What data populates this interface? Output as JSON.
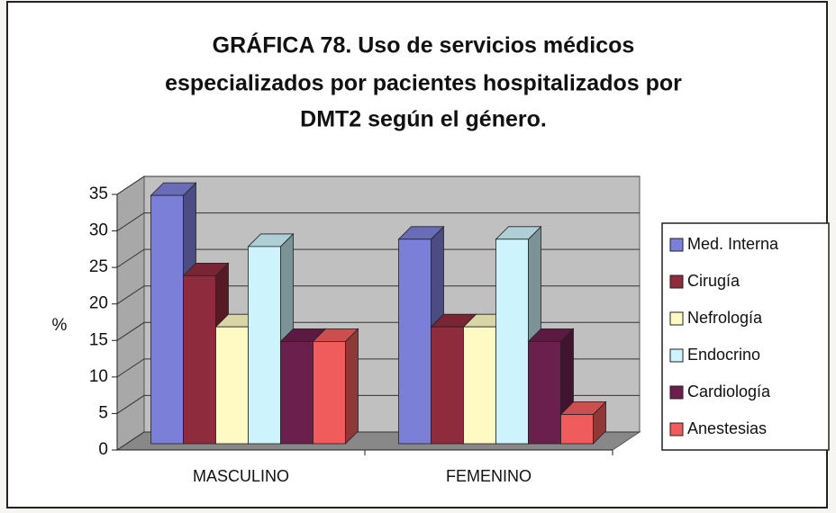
{
  "chart_data": {
    "type": "bar",
    "title": [
      "GRÁFICA 78. Uso de servicios médicos",
      "especializados por pacientes hospitalizados por",
      "DMT2 según el género."
    ],
    "ylabel": "%",
    "categories": [
      "MASCULINO",
      "FEMENINO"
    ],
    "series": [
      {
        "name": "Med. Interna",
        "color": "#7b7fd8",
        "values": [
          34,
          28
        ]
      },
      {
        "name": "Cirugía",
        "color": "#8e2b3c",
        "values": [
          23,
          16
        ]
      },
      {
        "name": "Nefrología",
        "color": "#fffac4",
        "values": [
          16,
          16
        ]
      },
      {
        "name": "Endocrino",
        "color": "#cdf3fc",
        "values": [
          27,
          28
        ]
      },
      {
        "name": "Cardiología",
        "color": "#6b1f4c",
        "values": [
          14,
          14
        ]
      },
      {
        "name": "Anestesias",
        "color": "#f05c5c",
        "values": [
          14,
          4
        ]
      }
    ],
    "ylim": [
      0,
      35
    ],
    "yticks": [
      0,
      5,
      10,
      15,
      20,
      25,
      30,
      35
    ],
    "grid": true,
    "legend": "right"
  }
}
